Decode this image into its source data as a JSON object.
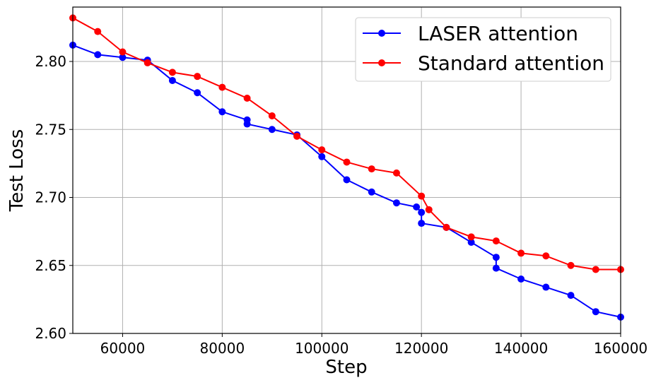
{
  "chart_data": {
    "type": "line",
    "title": "",
    "xlabel": "Step",
    "ylabel": "Test Loss",
    "xlim": [
      50000,
      160000
    ],
    "ylim": [
      2.6,
      2.84
    ],
    "xticks": [
      60000,
      80000,
      100000,
      120000,
      140000,
      160000
    ],
    "xtick_labels": [
      "60000",
      "80000",
      "100000",
      "120000",
      "140000",
      "160000"
    ],
    "yticks": [
      2.6,
      2.65,
      2.7,
      2.75,
      2.8
    ],
    "ytick_labels": [
      "2.60",
      "2.65",
      "2.70",
      "2.75",
      "2.80"
    ],
    "grid": true,
    "legend_position": "top-right",
    "series": [
      {
        "name": "LASER attention",
        "color": "#0000ff",
        "x": [
          50000,
          55000,
          60000,
          65000,
          70000,
          75000,
          80000,
          85000,
          85000,
          90000,
          95000,
          100000,
          105000,
          110000,
          115000,
          119000,
          120000,
          120000,
          125000,
          130000,
          135000,
          135000,
          140000,
          145000,
          150000,
          155000,
          160000
        ],
        "y": [
          2.812,
          2.805,
          2.803,
          2.801,
          2.786,
          2.777,
          2.763,
          2.757,
          2.754,
          2.75,
          2.746,
          2.73,
          2.713,
          2.704,
          2.696,
          2.693,
          2.689,
          2.681,
          2.678,
          2.667,
          2.656,
          2.648,
          2.64,
          2.634,
          2.628,
          2.616,
          2.612
        ]
      },
      {
        "name": "Standard attention",
        "color": "#ff0000",
        "x": [
          50000,
          55000,
          60000,
          65000,
          70000,
          75000,
          80000,
          85000,
          90000,
          95000,
          100000,
          105000,
          110000,
          115000,
          120000,
          121500,
          125000,
          130000,
          135000,
          140000,
          145000,
          150000,
          155000,
          160000
        ],
        "y": [
          2.832,
          2.822,
          2.807,
          2.799,
          2.792,
          2.789,
          2.781,
          2.773,
          2.76,
          2.745,
          2.735,
          2.726,
          2.721,
          2.718,
          2.701,
          2.691,
          2.678,
          2.671,
          2.668,
          2.659,
          2.657,
          2.65,
          2.647,
          2.647
        ]
      }
    ]
  }
}
